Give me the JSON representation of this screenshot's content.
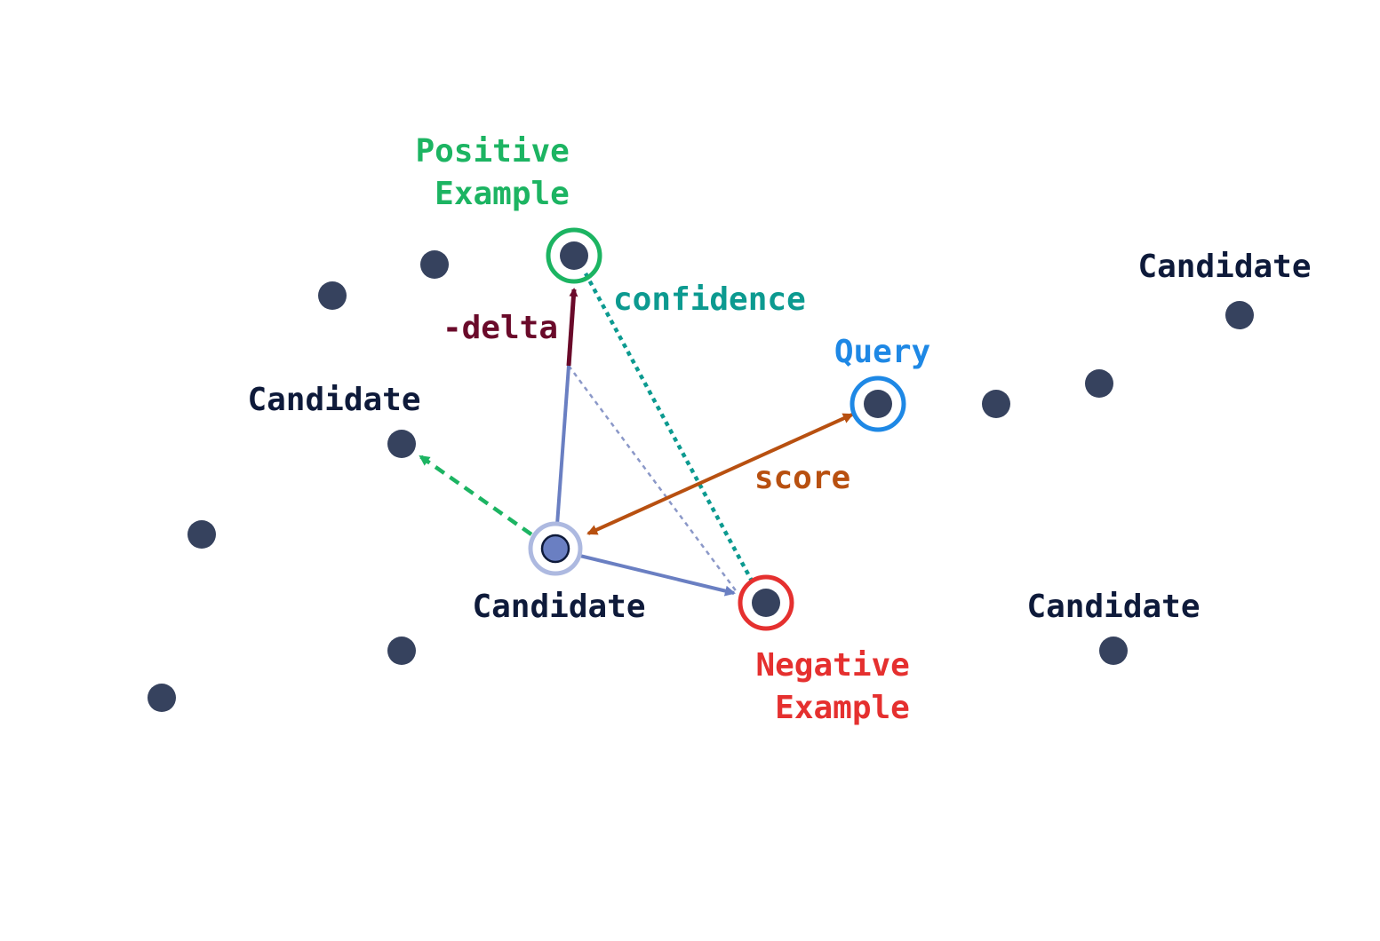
{
  "labels": {
    "positive_example": [
      "Positive",
      "Example"
    ],
    "negative_example": [
      "Negative",
      "Example"
    ],
    "query": "Query",
    "confidence": "confidence",
    "delta": "-delta",
    "score": "score",
    "candidate": "Candidate"
  },
  "colors": {
    "point": "#36425e",
    "positive": "#1cb462",
    "negative": "#e5302f",
    "query": "#1e88e5",
    "candidate_ring": "#adb9e0",
    "candidate_fill": "#6a7fc2",
    "confidence": "#0c9a90",
    "delta": "#6a0a2a",
    "score": "#b85010",
    "vector": "#6a7fc2",
    "dark_text": "#0e1a3a"
  }
}
